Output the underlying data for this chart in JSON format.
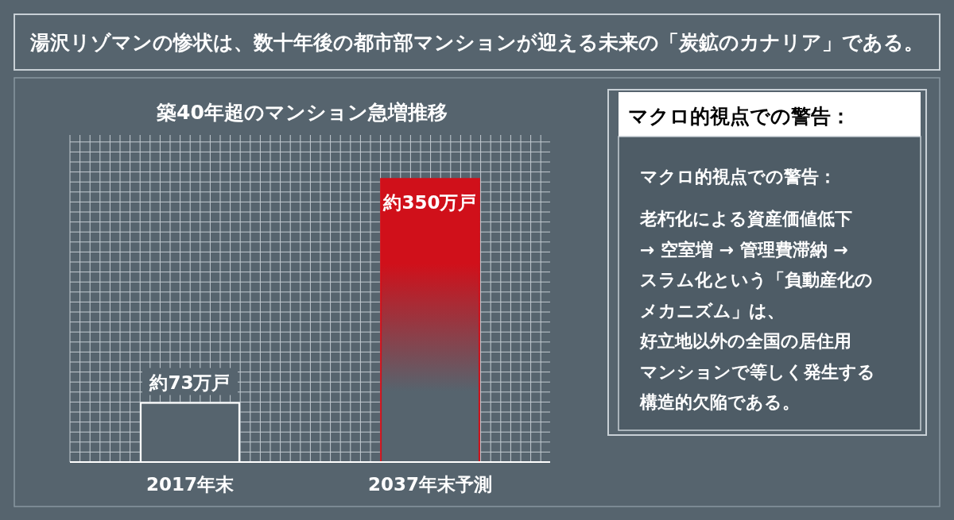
{
  "chart_data": {
    "type": "bar",
    "title": "湯沢リゾマンの惨状は、数十年後の都市部マンションが迎える未来の「炭鉱のカナリア」である。",
    "subtitle": "築40年超のマンション急増推移",
    "categories": [
      "2017年末",
      "2037年末予測"
    ],
    "values": [
      73,
      350
    ],
    "value_labels": [
      "約73万戸",
      "約350万戸"
    ],
    "colors": [
      "#ffffff",
      "#d0101a"
    ],
    "grid": true,
    "annotations": [
      "マクロ的視点での警告：",
      "マクロ的視点での警告：",
      "老朽化による資産価値低下",
      "→ 空室増 → 管理費滞納 →",
      "スラム化という「負動産化の",
      "メカニズム」は、",
      "好立地以外の全国の居住用",
      "マンションで等しく発生する",
      "構造的欠陥である。"
    ]
  }
}
